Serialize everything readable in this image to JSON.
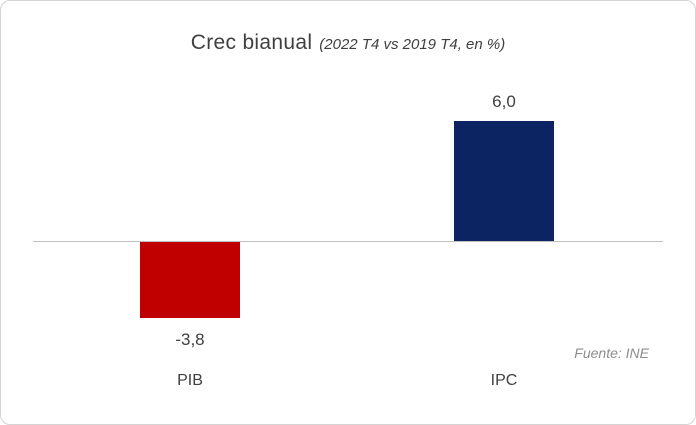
{
  "chart": {
    "title": "Crec bianual",
    "subtitle": "(2022 T4 vs 2019 T4, en %)",
    "source": "Fuente: INE"
  },
  "chart_data": {
    "type": "bar",
    "title": "Crec bianual (2022 T4 vs 2019 T4, en %)",
    "categories": [
      "PIB",
      "IPC"
    ],
    "values": [
      -3.8,
      6.0
    ],
    "value_labels": [
      "-3,8",
      "6,0"
    ],
    "bar_colors": [
      "#c00000",
      "#0d2463"
    ],
    "xlabel": "",
    "ylabel": "",
    "ylim": [
      -4.5,
      7
    ],
    "grid": false,
    "legend": false,
    "annotations": [
      "Fuente: INE"
    ],
    "baseline_color": "#bfbfbf"
  }
}
